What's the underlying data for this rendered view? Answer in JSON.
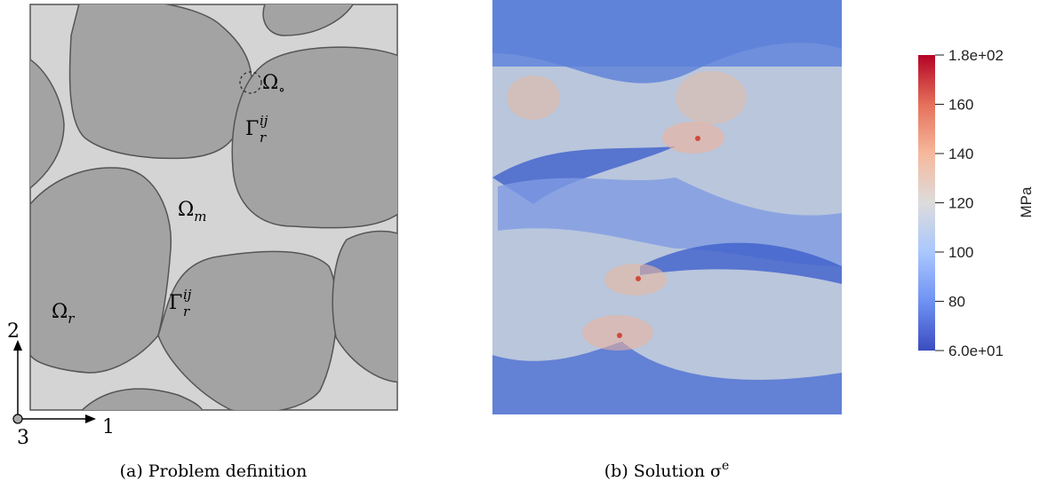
{
  "panel_a": {
    "labels": [
      {
        "base": "Ω",
        "sub": "∘"
      },
      {
        "base": "Γ",
        "sub": "r",
        "sup": "ij"
      },
      {
        "base": "Ω",
        "sub": "m"
      },
      {
        "base": "Γ",
        "sub": "r",
        "sup": "ij"
      },
      {
        "base": "Ω",
        "sub": "r"
      }
    ],
    "axes": {
      "x": "1",
      "y": "2",
      "z": "3"
    },
    "caption": "(a) Problem definition"
  },
  "panel_b": {
    "caption": {
      "base": "(b) Solution σ",
      "sup": "e"
    },
    "colorbar": {
      "title": "MPa",
      "range": [
        60,
        180
      ],
      "ticks": [
        {
          "value": 180,
          "label": "1.8e+02"
        },
        160,
        140,
        120,
        100,
        80,
        {
          "value": 60,
          "label": "6.0e+01"
        }
      ],
      "colors": [
        "#3b4cc0",
        "#6f92f3",
        "#aac7fd",
        "#dddcdc",
        "#f6b89c",
        "#e5705a",
        "#b40426"
      ]
    }
  }
}
